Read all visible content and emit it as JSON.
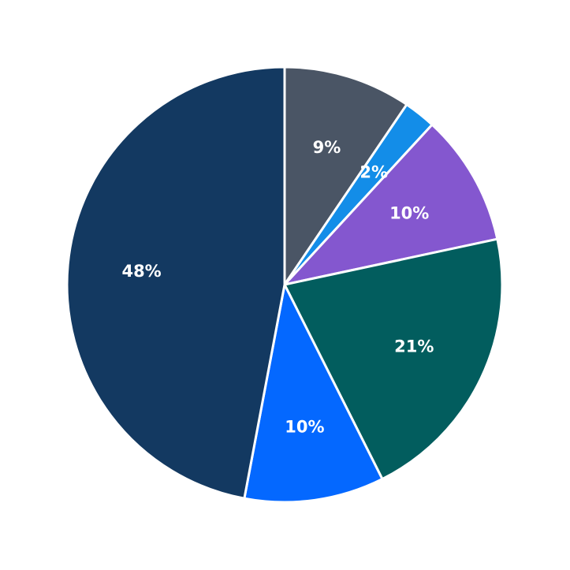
{
  "chart_data": {
    "type": "pie",
    "start_angle": "12 o'clock",
    "direction": "clockwise",
    "slices": [
      {
        "label": "9%",
        "value": 9.6,
        "color": "#4a5565"
      },
      {
        "label": "2%",
        "value": 2.4,
        "color": "#138de8"
      },
      {
        "label": "10%",
        "value": 9.9,
        "color": "#8457cf"
      },
      {
        "label": "21%",
        "value": 21.2,
        "color": "#025d5e"
      },
      {
        "label": "10%",
        "value": 10.5,
        "color": "#0468ff"
      },
      {
        "label": "48%",
        "value": 47.6,
        "color": "#133961"
      }
    ]
  }
}
